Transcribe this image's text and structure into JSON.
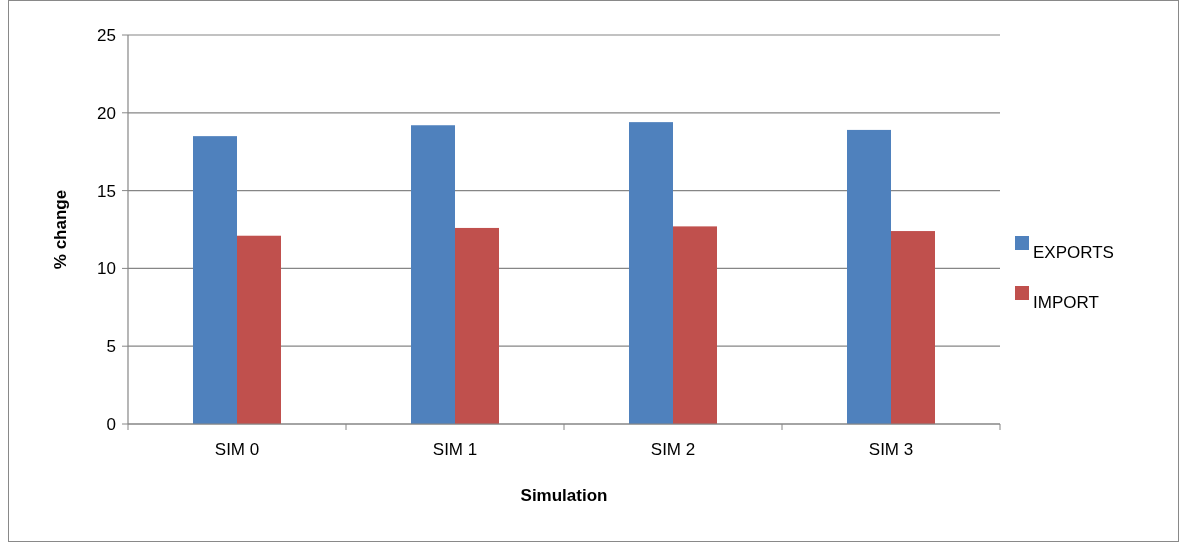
{
  "chart_data": {
    "type": "bar",
    "xlabel": "Simulation",
    "ylabel": "% change",
    "categories": [
      "SIM 0",
      "SIM 1",
      "SIM 2",
      "SIM 3"
    ],
    "series": [
      {
        "name": "EXPORTS",
        "color": "#4f81bd",
        "values": [
          18.5,
          19.2,
          19.4,
          18.9
        ]
      },
      {
        "name": "IMPORT",
        "color": "#c0504d",
        "values": [
          12.1,
          12.6,
          12.7,
          12.4
        ]
      }
    ],
    "ylim": [
      0,
      25
    ],
    "yticks": [
      0,
      5,
      10,
      15,
      20,
      25
    ],
    "grid": "y",
    "legend": "right"
  }
}
